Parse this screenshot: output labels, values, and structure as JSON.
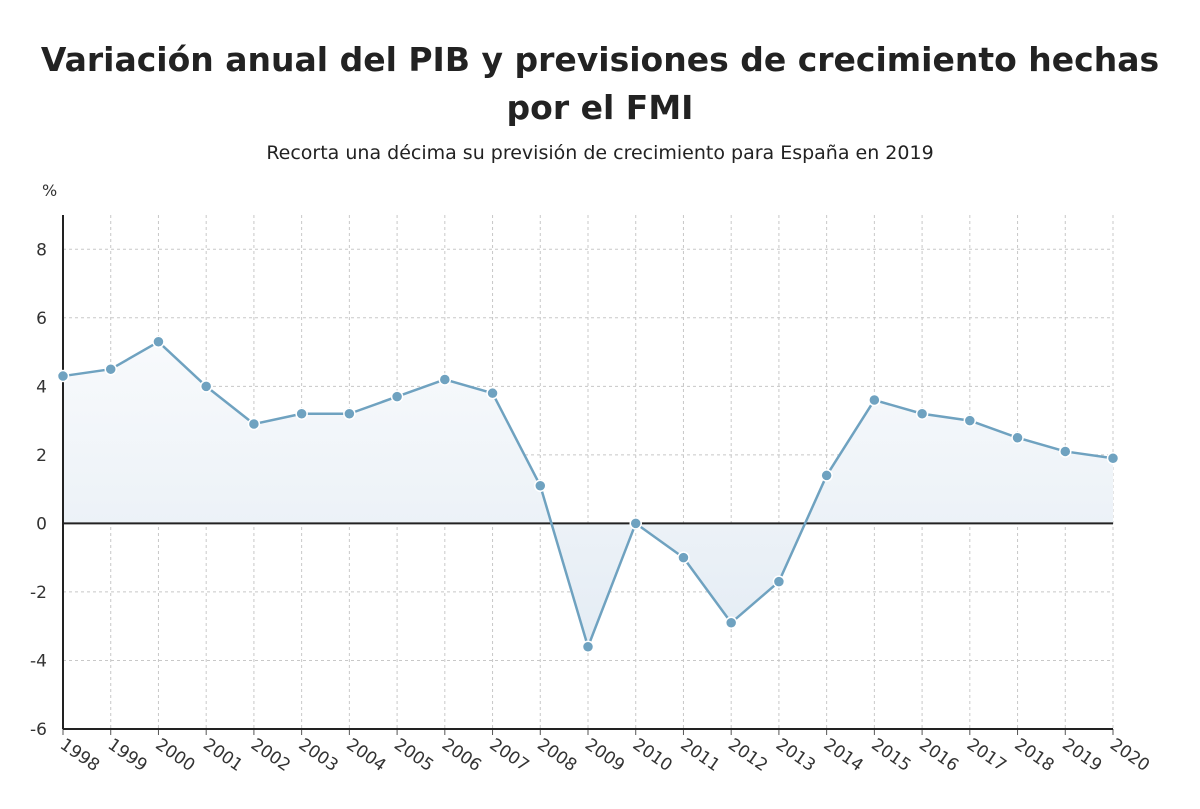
{
  "chart_data": {
    "type": "area",
    "title": "Variación anual del PIB y previsiones de crecimiento hechas por el FMI",
    "subtitle": "Recorta una décima su previsión de crecimiento para España en 2019",
    "ylabel": "%",
    "xlabel": "",
    "ylim": [
      -6,
      9
    ],
    "yticks": [
      8,
      6,
      4,
      2,
      0,
      -2,
      -4,
      -6
    ],
    "categories": [
      "1998",
      "1999",
      "2000",
      "2001",
      "2002",
      "2003",
      "2004",
      "2005",
      "2006",
      "2007",
      "2008",
      "2009",
      "2010",
      "2011",
      "2012",
      "2013",
      "2014",
      "2015",
      "2016",
      "2017",
      "2018",
      "2019",
      "2020"
    ],
    "series": [
      {
        "values": [
          4.3,
          4.5,
          5.3,
          4.0,
          2.9,
          3.2,
          3.2,
          3.7,
          4.2,
          3.8,
          1.1,
          -3.6,
          0.0,
          -1.0,
          -2.9,
          -1.7,
          1.4,
          3.6,
          3.2,
          3.0,
          2.5,
          2.1,
          1.9
        ]
      }
    ],
    "grid": true,
    "colors": {
      "line": "#6fa2c0",
      "fill_top": "#e4ecf4",
      "fill_bottom": "#f8fafc",
      "grid": "#c8c8c8",
      "axis": "#222222"
    }
  }
}
